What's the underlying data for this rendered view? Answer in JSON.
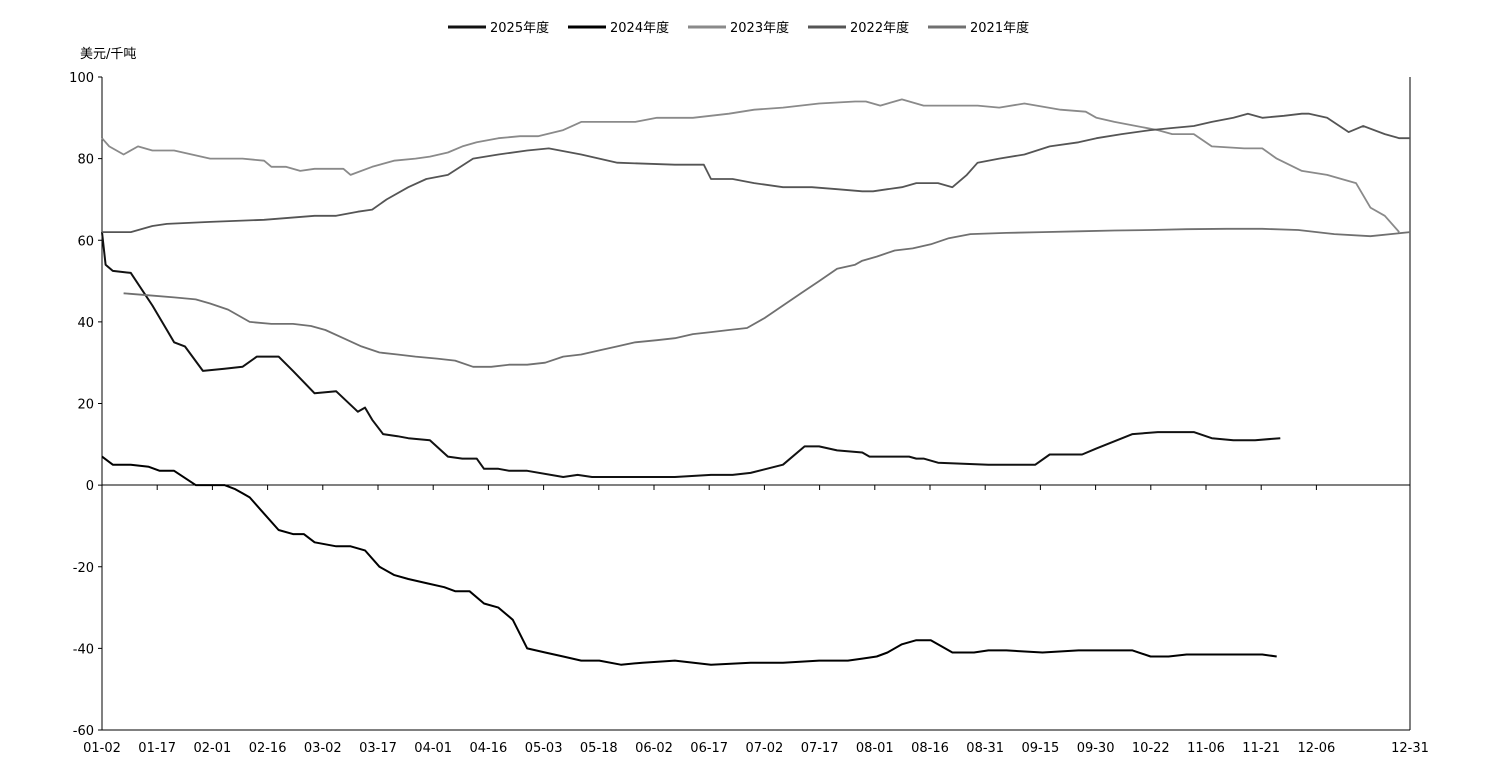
{
  "chart_data": {
    "type": "line",
    "title": "",
    "xlabel": "",
    "ylabel": "美元/千吨",
    "ylim": [
      -60,
      100
    ],
    "yticks": [
      "-60",
      "-40",
      "-20",
      "0",
      "20",
      "40",
      "60",
      "80",
      "100"
    ],
    "categories": [
      "01-02",
      "01-17",
      "02-01",
      "02-16",
      "03-02",
      "03-17",
      "04-01",
      "04-16",
      "05-03",
      "05-18",
      "06-02",
      "06-17",
      "07-02",
      "07-17",
      "08-01",
      "08-16",
      "08-31",
      "09-15",
      "09-30",
      "10-22",
      "11-06",
      "11-21",
      "12-06",
      "12-31"
    ],
    "legend_position": "top-center",
    "grid": false,
    "series": [
      {
        "name": "2025年度",
        "color": "#111111",
        "x": [
          "01-02",
          "01-03",
          "01-05",
          "01-10",
          "01-16",
          "01-20",
          "01-22",
          "01-25",
          "01-30",
          "02-05",
          "02-10",
          "02-14",
          "02-18",
          "02-20",
          "02-24",
          "03-02",
          "03-08",
          "03-14",
          "03-16",
          "03-18",
          "03-21",
          "03-25",
          "03-28",
          "04-03",
          "04-08",
          "04-12",
          "04-16",
          "04-18",
          "04-22",
          "04-25",
          "04-27",
          "04-30",
          "05-10",
          "05-14",
          "05-18",
          "05-20",
          "05-24",
          "05-30",
          "06-05",
          "06-10",
          "06-20",
          "06-26",
          "07-01",
          "07-10",
          "07-16",
          "07-20",
          "07-25",
          "08-01",
          "08-03",
          "08-06",
          "08-14",
          "08-16",
          "08-18",
          "08-22",
          "09-05",
          "09-10",
          "09-18",
          "09-22",
          "10-01",
          "10-05",
          "10-15",
          "10-22",
          "11-01",
          "11-06",
          "11-12",
          "11-18",
          "11-25"
        ],
        "values": [
          62,
          54,
          52.5,
          52,
          44,
          38,
          35,
          34,
          28,
          28.5,
          29,
          31.5,
          31.5,
          31.5,
          28,
          22.5,
          23,
          18,
          19,
          16,
          12.5,
          12,
          11.5,
          11,
          7,
          6.5,
          6.5,
          4,
          4,
          3.5,
          3.5,
          3.5,
          2,
          2.5,
          2,
          2,
          2,
          2,
          2,
          2,
          2.5,
          2.5,
          3,
          5,
          9.5,
          9.5,
          8.5,
          8,
          7,
          7,
          7,
          6.5,
          6.5,
          5.5,
          5,
          5,
          5,
          7.5,
          7.5,
          9,
          12.5,
          13,
          13,
          11.5,
          11,
          11,
          11.5
        ]
      },
      {
        "name": "2024年度",
        "color": "#000000",
        "x": [
          "01-02",
          "01-05",
          "01-10",
          "01-15",
          "01-18",
          "01-22",
          "01-28",
          "02-01",
          "02-05",
          "02-08",
          "02-10",
          "02-12",
          "02-16",
          "02-20",
          "02-24",
          "02-27",
          "03-02",
          "03-08",
          "03-12",
          "03-16",
          "03-20",
          "03-24",
          "03-28",
          "04-02",
          "04-07",
          "04-10",
          "04-14",
          "04-18",
          "04-22",
          "04-26",
          "04-30",
          "05-05",
          "05-10",
          "05-15",
          "05-20",
          "05-26",
          "06-01",
          "06-10",
          "06-20",
          "07-01",
          "07-10",
          "07-20",
          "07-28",
          "08-01",
          "08-05",
          "08-08",
          "08-12",
          "08-16",
          "08-20",
          "08-26",
          "09-01",
          "09-05",
          "09-10",
          "09-20",
          "09-30",
          "10-08",
          "10-15",
          "10-20",
          "10-25",
          "10-30",
          "11-06",
          "11-12",
          "11-20",
          "11-24"
        ],
        "values": [
          7,
          5,
          5,
          4.5,
          3.5,
          3.5,
          0,
          0,
          0,
          -1,
          -2,
          -3,
          -7,
          -11,
          -12,
          -12,
          -14,
          -15,
          -15,
          -16,
          -20,
          -22,
          -23,
          -24,
          -25,
          -26,
          -26,
          -29,
          -30,
          -33,
          -40,
          -41,
          -42,
          -43,
          -43,
          -44,
          -43.5,
          -43,
          -44,
          -43.5,
          -43.5,
          -43,
          -43,
          -42.5,
          -42,
          -41,
          -39,
          -38,
          -38,
          -41,
          -41,
          -40.5,
          -40.5,
          -41,
          -40.5,
          -40.5,
          -40.5,
          -42,
          -42,
          -41.5,
          -41.5,
          -41.5,
          -41.5,
          -42
        ]
      },
      {
        "name": "2023年度",
        "color": "#8a8a8a",
        "x": [
          "01-02",
          "01-04",
          "01-08",
          "01-12",
          "01-16",
          "01-18",
          "01-22",
          "02-01",
          "02-10",
          "02-16",
          "02-18",
          "02-22",
          "02-26",
          "03-02",
          "03-10",
          "03-12",
          "03-18",
          "03-24",
          "03-30",
          "04-03",
          "04-08",
          "04-12",
          "04-16",
          "04-22",
          "04-28",
          "05-03",
          "05-10",
          "05-15",
          "05-25",
          "05-30",
          "06-05",
          "06-15",
          "06-25",
          "07-02",
          "07-10",
          "07-20",
          "07-30",
          "08-02",
          "08-06",
          "08-12",
          "08-18",
          "08-25",
          "09-02",
          "09-08",
          "09-15",
          "09-25",
          "10-02",
          "10-05",
          "10-10",
          "10-22",
          "10-26",
          "11-01",
          "11-06",
          "11-15",
          "11-20",
          "11-24",
          "12-01",
          "12-08",
          "12-12",
          "12-16",
          "12-20",
          "12-24",
          "12-28"
        ],
        "values": [
          85,
          83,
          81,
          83,
          82,
          82,
          82,
          80,
          80,
          79.5,
          78,
          78,
          77,
          77.5,
          77.5,
          76,
          78,
          79.5,
          80,
          80.5,
          81.5,
          83,
          84,
          85,
          85.5,
          85.5,
          87,
          89,
          89,
          89,
          90,
          90,
          91,
          92,
          92.5,
          93.5,
          94,
          94,
          93,
          94.5,
          93,
          93,
          93,
          92.5,
          93.5,
          92,
          91.5,
          90,
          89,
          87,
          86,
          86,
          83,
          82.5,
          82.5,
          80,
          77,
          76,
          75,
          74,
          68,
          66,
          62
        ]
      },
      {
        "name": "2022年度",
        "color": "#555555",
        "x": [
          "01-02",
          "01-10",
          "01-16",
          "01-20",
          "02-01",
          "02-16",
          "03-02",
          "03-08",
          "03-14",
          "03-18",
          "03-22",
          "03-28",
          "04-02",
          "04-08",
          "04-15",
          "04-22",
          "04-30",
          "05-06",
          "05-15",
          "05-25",
          "06-10",
          "06-18",
          "06-20",
          "06-26",
          "07-02",
          "07-10",
          "07-18",
          "07-25",
          "08-01",
          "08-04",
          "08-08",
          "08-12",
          "08-16",
          "08-22",
          "08-26",
          "08-30",
          "09-02",
          "09-08",
          "09-15",
          "09-22",
          "09-30",
          "10-05",
          "10-12",
          "10-20",
          "10-26",
          "11-01",
          "11-06",
          "11-12",
          "11-16",
          "11-20",
          "11-26",
          "12-01",
          "12-03",
          "12-08",
          "12-14",
          "12-18",
          "12-24",
          "12-28",
          "12-31"
        ],
        "values": [
          62,
          62,
          63.5,
          64,
          64.5,
          65,
          66,
          66,
          67,
          67.5,
          70,
          73,
          75,
          76,
          80,
          81,
          82,
          82.5,
          81,
          79,
          78.5,
          78.5,
          75,
          75,
          74,
          73,
          73,
          72.5,
          72,
          72,
          72.5,
          73,
          74,
          74,
          73,
          76,
          79,
          80,
          81,
          83,
          84,
          85,
          86,
          87,
          87.5,
          88,
          89,
          90,
          91,
          90,
          90.5,
          91,
          91,
          90,
          86.5,
          88,
          86,
          85,
          85
        ]
      },
      {
        "name": "2021年度",
        "color": "#707070",
        "x": [
          "01-08",
          "01-15",
          "01-22",
          "01-28",
          "02-01",
          "02-06",
          "02-12",
          "02-18",
          "02-24",
          "03-01",
          "03-05",
          "03-10",
          "03-15",
          "03-20",
          "03-25",
          "03-30",
          "04-05",
          "04-10",
          "04-15",
          "04-20",
          "04-25",
          "04-30",
          "05-05",
          "05-10",
          "05-15",
          "05-20",
          "05-25",
          "05-30",
          "06-05",
          "06-10",
          "06-15",
          "06-20",
          "06-25",
          "06-30",
          "07-05",
          "07-10",
          "07-15",
          "07-20",
          "07-25",
          "07-30",
          "08-01",
          "08-05",
          "08-10",
          "08-15",
          "08-20",
          "08-25",
          "08-31",
          "09-10",
          "09-20",
          "09-30",
          "10-10",
          "10-20",
          "10-30",
          "11-10",
          "11-20",
          "11-30",
          "12-10",
          "12-20",
          "12-31"
        ],
        "values": [
          47,
          46.5,
          46,
          45.5,
          44.5,
          43,
          40,
          39.5,
          39.5,
          39,
          38,
          36,
          34,
          32.5,
          32,
          31.5,
          31,
          30.5,
          29,
          29,
          29.5,
          29.5,
          30,
          31.5,
          32,
          33,
          34,
          35,
          35.5,
          36,
          37,
          37.5,
          38,
          38.5,
          41,
          44,
          47,
          50,
          53,
          54,
          55,
          56,
          57.5,
          58,
          59,
          60.5,
          61.5,
          61.8,
          62,
          62.2,
          62.4,
          62.5,
          62.7,
          62.8,
          62.8,
          62.5,
          61.5,
          61,
          62
        ]
      }
    ]
  }
}
